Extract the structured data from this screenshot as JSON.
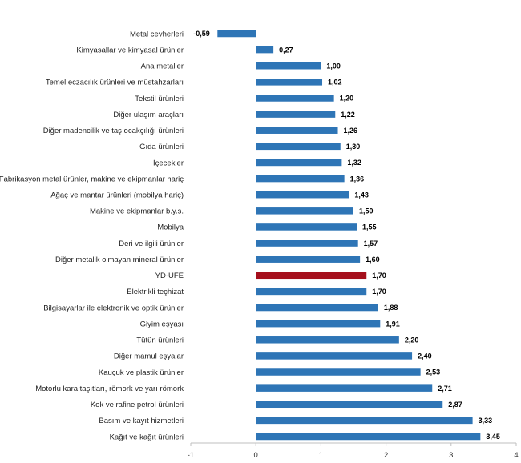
{
  "chart_data": {
    "type": "bar",
    "orientation": "horizontal",
    "title": "",
    "xlabel": "",
    "ylabel": "",
    "xlim": [
      -1,
      4
    ],
    "xticks": [
      "-1",
      "0",
      "1",
      "2",
      "3",
      "4"
    ],
    "grid": false,
    "legend": "none",
    "default_color": "#2e75b6",
    "highlight_color": "#a50f1c",
    "highlight_category": "YD-ÜFE",
    "categories": [
      "Metal cevherleri",
      "Kimyasallar ve kimyasal ürünler",
      "Ana metaller",
      "Temel eczacılık ürünleri ve müstahzarları",
      "Tekstil ürünleri",
      "Diğer ulaşım araçları",
      "Diğer madencilik ve taş ocakçılığı ürünleri",
      "Gıda ürünleri",
      "İçecekler",
      "Fabrikasyon metal ürünler, makine ve ekipmanlar hariç",
      "Ağaç ve mantar ürünleri (mobilya hariç)",
      "Makine ve ekipmanlar b.y.s.",
      "Mobilya",
      "Deri ve ilgili ürünler",
      "Diğer metalik olmayan mineral ürünler",
      "YD-ÜFE",
      "Elektrikli teçhizat",
      "Bilgisayarlar ile elektronik ve optik ürünler",
      "Giyim eşyası",
      "Tütün ürünleri",
      "Diğer mamul eşyalar",
      "Kauçuk ve plastik ürünler",
      "Motorlu kara taşıtları, römork ve yarı römork",
      "Kok ve rafine petrol ürünleri",
      "Basım ve kayıt hizmetleri",
      "Kağıt ve kağıt ürünleri"
    ],
    "values": [
      -0.59,
      0.27,
      1.0,
      1.02,
      1.2,
      1.22,
      1.26,
      1.3,
      1.32,
      1.36,
      1.43,
      1.5,
      1.55,
      1.57,
      1.6,
      1.7,
      1.7,
      1.88,
      1.91,
      2.2,
      2.4,
      2.53,
      2.71,
      2.87,
      3.33,
      3.45
    ],
    "value_labels": [
      "-0,59",
      "0,27",
      "1,00",
      "1,02",
      "1,20",
      "1,22",
      "1,26",
      "1,30",
      "1,32",
      "1,36",
      "1,43",
      "1,50",
      "1,55",
      "1,57",
      "1,60",
      "1,70",
      "1,70",
      "1,88",
      "1,91",
      "2,20",
      "2,40",
      "2,53",
      "2,71",
      "2,87",
      "3,33",
      "3,45"
    ]
  }
}
